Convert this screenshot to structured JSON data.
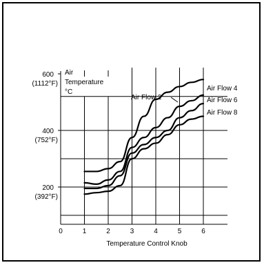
{
  "chart_data": {
    "type": "line",
    "title": "",
    "xlabel": "Temperature Control Knob",
    "ylabel": "Air Temperature °C",
    "x_ticks": [
      "0",
      "1",
      "2",
      "3",
      "4",
      "5",
      "6"
    ],
    "y_ticks": [
      {
        "value": 600,
        "label": "600",
        "sublabel": "(1112°F)"
      },
      {
        "value": 400,
        "label": "400",
        "sublabel": "(752°F)"
      },
      {
        "value": 200,
        "label": "200",
        "sublabel": "(392°F)"
      }
    ],
    "xlim": [
      0,
      6
    ],
    "ylim": [
      50,
      600
    ],
    "grid": true,
    "series": [
      {
        "name": "Air Flow 2",
        "x": [
          1.0,
          1.5,
          2.0,
          2.5,
          3.0,
          3.5,
          4.0,
          4.5,
          5.0,
          5.5,
          6.0
        ],
        "values": [
          255,
          255,
          265,
          290,
          375,
          450,
          510,
          535,
          555,
          570,
          580
        ]
      },
      {
        "name": "Air Flow 4",
        "x": [
          1.0,
          1.5,
          2.0,
          2.5,
          3.0,
          3.5,
          4.0,
          4.5,
          5.0,
          5.5,
          6.0
        ],
        "values": [
          215,
          210,
          225,
          255,
          340,
          375,
          410,
          445,
          485,
          505,
          525
        ]
      },
      {
        "name": "Air Flow 6",
        "x": [
          1.0,
          1.5,
          2.0,
          2.5,
          3.0,
          3.5,
          4.0,
          4.5,
          5.0,
          5.5,
          6.0
        ],
        "values": [
          195,
          195,
          205,
          240,
          320,
          350,
          375,
          400,
          445,
          470,
          495
        ]
      },
      {
        "name": "Air Flow 8",
        "x": [
          1.0,
          1.5,
          2.0,
          2.5,
          3.0,
          3.5,
          4.0,
          4.5,
          5.0,
          5.5,
          6.0
        ],
        "values": [
          175,
          180,
          185,
          205,
          300,
          335,
          355,
          385,
          420,
          440,
          450
        ]
      }
    ]
  },
  "ylabel_lines": [
    "Air",
    "Temperature",
    "°C"
  ]
}
